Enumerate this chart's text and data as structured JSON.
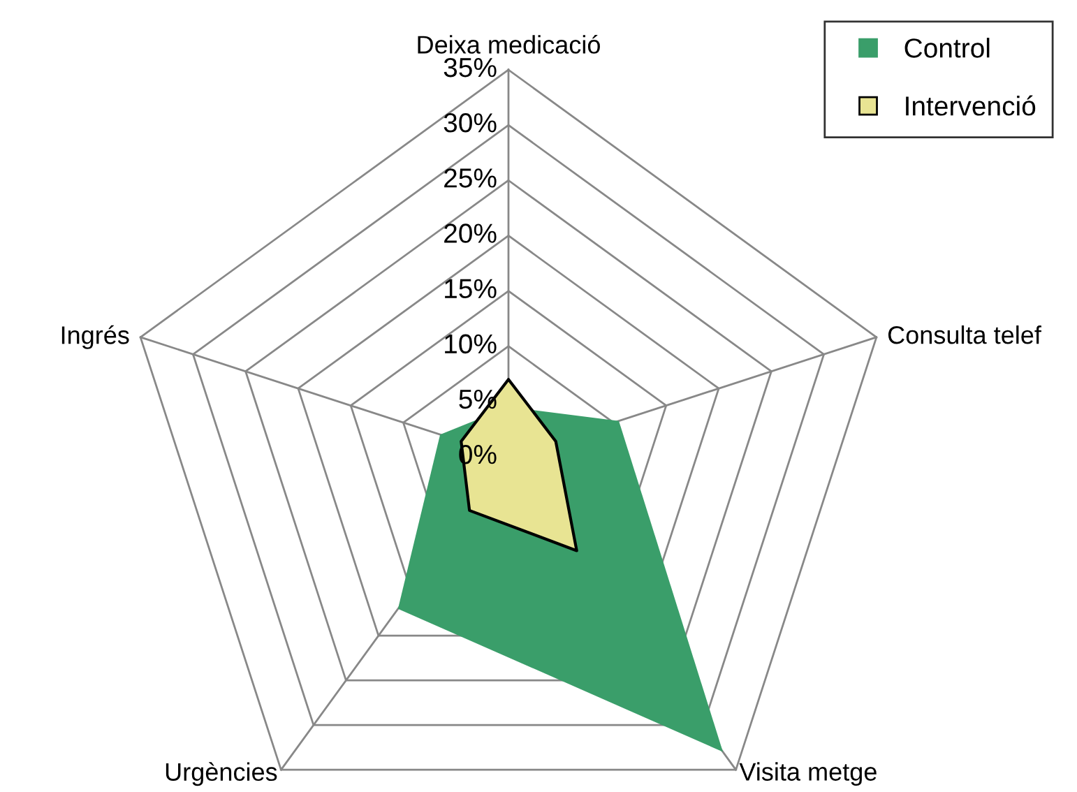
{
  "chart_data": {
    "type": "radar",
    "categories": [
      "Deixa medicació",
      "Consulta telef",
      "Visita metge",
      "Urgències",
      "Ingrés"
    ],
    "series": [
      {
        "name": "Control",
        "color": "#3a9e6a",
        "values": [
          4.5,
          10.5,
          33,
          17,
          6.5
        ]
      },
      {
        "name": "Intervenció",
        "color": "#e8e493",
        "values": [
          7,
          4.5,
          10.5,
          6,
          4.5
        ]
      }
    ],
    "ylim": [
      0,
      35
    ],
    "yticks": [
      {
        "value": 0,
        "label": "0%"
      },
      {
        "value": 5,
        "label": "5%"
      },
      {
        "value": 10,
        "label": "10%"
      },
      {
        "value": 15,
        "label": "15%"
      },
      {
        "value": 20,
        "label": "20%"
      },
      {
        "value": 25,
        "label": "25%"
      },
      {
        "value": 30,
        "label": "30%"
      },
      {
        "value": 35,
        "label": "35%"
      }
    ],
    "grid": true,
    "legend": "top right"
  }
}
